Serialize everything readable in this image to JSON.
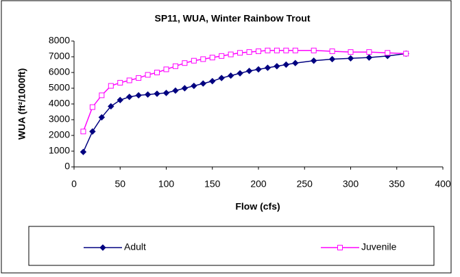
{
  "chart_data": {
    "type": "line",
    "title": "SP11, WUA, Winter Rainbow Trout",
    "xlabel": "Flow (cfs)",
    "ylabel": "WUA (ft²/1000ft)",
    "x": [
      10,
      20,
      30,
      40,
      50,
      60,
      70,
      80,
      90,
      100,
      110,
      120,
      130,
      140,
      150,
      160,
      170,
      180,
      190,
      200,
      210,
      220,
      230,
      240,
      260,
      280,
      300,
      320,
      340,
      360
    ],
    "series": [
      {
        "name": "Adult",
        "color": "#000080",
        "marker": "diamond",
        "values": [
          950,
          2250,
          3150,
          3850,
          4250,
          4450,
          4550,
          4600,
          4650,
          4700,
          4850,
          5000,
          5150,
          5300,
          5450,
          5650,
          5800,
          5950,
          6100,
          6200,
          6300,
          6400,
          6500,
          6600,
          6750,
          6850,
          6900,
          6950,
          7050,
          7200
        ]
      },
      {
        "name": "Juvenile",
        "color": "#ff00ff",
        "marker": "square",
        "values": [
          2250,
          3800,
          4550,
          5150,
          5350,
          5500,
          5650,
          5850,
          6000,
          6200,
          6400,
          6600,
          6750,
          6850,
          6950,
          7050,
          7150,
          7250,
          7300,
          7350,
          7400,
          7400,
          7400,
          7400,
          7400,
          7350,
          7300,
          7300,
          7250,
          7200
        ]
      }
    ],
    "xlim": [
      0,
      400
    ],
    "xticks": [
      0,
      50,
      100,
      150,
      200,
      250,
      300,
      350,
      400
    ],
    "ylim": [
      0,
      8000
    ],
    "yticks": [
      0,
      1000,
      2000,
      3000,
      4000,
      5000,
      6000,
      7000,
      8000
    ],
    "grid": false,
    "legend": "bottom"
  }
}
